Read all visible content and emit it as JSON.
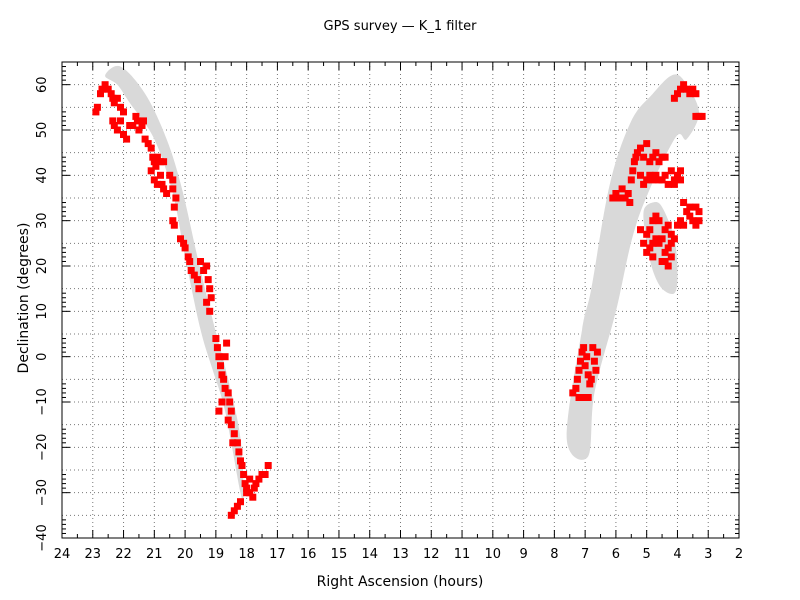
{
  "chart_data": {
    "type": "scatter",
    "title": "GPS survey — K_1 filter",
    "xlabel": "Right Ascension (hours)",
    "ylabel": "Declination (degrees)",
    "xlim": [
      24,
      2
    ],
    "ylim": [
      -40,
      65
    ],
    "x_ticks": [
      24,
      23,
      22,
      21,
      20,
      19,
      18,
      17,
      16,
      15,
      14,
      13,
      12,
      11,
      10,
      9,
      8,
      7,
      6,
      5,
      4,
      3,
      2
    ],
    "x_tick_labels": [
      "24",
      "23",
      "22",
      "21",
      "20",
      "19",
      "18",
      "17",
      "16",
      "15",
      "14",
      "13",
      "12",
      "11",
      "10",
      "9",
      "8",
      "7",
      "6",
      "5",
      "4",
      "3",
      "2"
    ],
    "y_ticks": [
      -40,
      -30,
      -20,
      -10,
      0,
      10,
      20,
      30,
      40,
      50,
      60
    ],
    "y_tick_labels": [
      "−40",
      "−30",
      "−20",
      "−10",
      "0",
      "10",
      "20",
      "30",
      "40",
      "50",
      "60"
    ],
    "grid": true,
    "colors": {
      "points": "#ff0000",
      "footprint": "#d9d9d9"
    },
    "footprint_regions": [
      {
        "name": "galactic-plane-west",
        "ra": [
          22.6,
          22.1,
          21.3,
          20.6,
          20.1,
          19.6,
          19.1,
          18.6,
          18.2,
          18.1,
          18.2,
          18.7,
          19.1,
          19.5,
          20.0,
          20.4,
          21.0,
          21.8,
          22.2
        ],
        "dec": [
          62,
          64,
          58,
          48,
          37,
          22,
          8,
          -5,
          -18,
          -31,
          -30,
          -12,
          -3,
          6,
          22,
          36,
          48,
          56,
          60
        ]
      },
      {
        "name": "galactic-plane-east",
        "ra": [
          7.6,
          7.1,
          6.8,
          6.2,
          5.5,
          4.8,
          4.2,
          3.8,
          3.3,
          3.7,
          4.1,
          5.3,
          6.0,
          6.7,
          6.9
        ],
        "dec": [
          -18,
          6,
          15,
          38,
          52,
          58,
          62,
          61,
          54,
          48,
          48,
          30,
          10,
          -8,
          -22
        ]
      },
      {
        "name": "ellipse-east",
        "ra": [
          5.1,
          4.8,
          4.5,
          4.1,
          4.0,
          4.1,
          4.5,
          4.8,
          5.0
        ],
        "dec": [
          32,
          34,
          33,
          26,
          18,
          14,
          15,
          19,
          25
        ]
      }
    ],
    "series": [
      {
        "note": "",
        "points": [
          [
            22.9,
            54
          ],
          [
            22.85,
            55
          ],
          [
            22.75,
            58
          ],
          [
            22.7,
            59
          ],
          [
            22.6,
            60
          ],
          [
            22.5,
            59
          ],
          [
            22.4,
            58
          ],
          [
            22.35,
            57
          ],
          [
            22.3,
            56
          ],
          [
            22.2,
            57
          ],
          [
            22.1,
            55
          ],
          [
            22.0,
            54
          ],
          [
            22.35,
            52
          ],
          [
            22.3,
            51
          ],
          [
            22.2,
            50
          ],
          [
            22.1,
            52
          ],
          [
            22.0,
            49
          ],
          [
            21.9,
            48
          ],
          [
            21.8,
            51
          ],
          [
            21.7,
            51
          ],
          [
            21.6,
            53
          ],
          [
            21.55,
            52
          ],
          [
            21.5,
            50
          ],
          [
            21.4,
            51
          ],
          [
            21.35,
            52
          ],
          [
            21.3,
            48
          ],
          [
            21.2,
            47
          ],
          [
            21.1,
            46
          ],
          [
            21.05,
            44
          ],
          [
            21.0,
            43
          ],
          [
            20.95,
            42
          ],
          [
            20.9,
            44
          ],
          [
            20.8,
            43
          ],
          [
            20.7,
            43
          ],
          [
            21.1,
            41
          ],
          [
            21.0,
            39
          ],
          [
            20.9,
            38
          ],
          [
            20.8,
            40
          ],
          [
            20.75,
            38
          ],
          [
            20.7,
            37
          ],
          [
            20.6,
            36
          ],
          [
            20.5,
            40
          ],
          [
            20.4,
            39
          ],
          [
            20.4,
            37
          ],
          [
            20.35,
            33
          ],
          [
            20.3,
            35
          ],
          [
            20.4,
            30
          ],
          [
            20.35,
            29
          ],
          [
            20.15,
            26
          ],
          [
            20.05,
            25
          ],
          [
            20.0,
            24
          ],
          [
            19.9,
            22
          ],
          [
            19.85,
            21
          ],
          [
            19.8,
            19
          ],
          [
            19.7,
            18
          ],
          [
            19.6,
            17
          ],
          [
            19.55,
            15
          ],
          [
            19.5,
            21
          ],
          [
            19.4,
            19
          ],
          [
            19.3,
            20
          ],
          [
            19.25,
            17
          ],
          [
            19.2,
            15
          ],
          [
            19.15,
            13
          ],
          [
            19.3,
            12
          ],
          [
            19.2,
            10
          ],
          [
            19.0,
            4
          ],
          [
            18.95,
            2
          ],
          [
            18.9,
            0
          ],
          [
            18.85,
            -2
          ],
          [
            18.8,
            -4
          ],
          [
            18.75,
            -5
          ],
          [
            18.7,
            -7
          ],
          [
            18.6,
            -8
          ],
          [
            18.55,
            -10
          ],
          [
            18.5,
            -12
          ],
          [
            18.6,
            -14
          ],
          [
            18.5,
            -15
          ],
          [
            18.4,
            -17
          ],
          [
            18.45,
            -19
          ],
          [
            18.7,
            0
          ],
          [
            18.65,
            3
          ],
          [
            18.8,
            -10
          ],
          [
            18.9,
            -12
          ],
          [
            18.3,
            -19
          ],
          [
            18.25,
            -21
          ],
          [
            18.2,
            -23
          ],
          [
            18.15,
            -24
          ],
          [
            18.1,
            -26
          ],
          [
            18.05,
            -28
          ],
          [
            18.0,
            -29
          ],
          [
            17.9,
            -30
          ],
          [
            17.8,
            -31
          ],
          [
            17.75,
            -29
          ],
          [
            17.7,
            -28
          ],
          [
            17.6,
            -27
          ],
          [
            17.5,
            -26
          ],
          [
            17.4,
            -26
          ],
          [
            17.3,
            -24
          ],
          [
            17.9,
            -27
          ],
          [
            18.2,
            -32
          ],
          [
            18.3,
            -33
          ],
          [
            18.4,
            -34
          ],
          [
            18.5,
            -35
          ],
          [
            18.0,
            -30
          ],
          [
            7.4,
            -8
          ],
          [
            7.3,
            -7
          ],
          [
            7.25,
            -5
          ],
          [
            7.2,
            -3
          ],
          [
            7.15,
            -1
          ],
          [
            7.1,
            1
          ],
          [
            7.05,
            2
          ],
          [
            7.0,
            -2
          ],
          [
            6.95,
            0
          ],
          [
            6.9,
            -4
          ],
          [
            6.85,
            -6
          ],
          [
            6.8,
            -5
          ],
          [
            6.75,
            2
          ],
          [
            6.7,
            -1
          ],
          [
            6.65,
            -3
          ],
          [
            6.6,
            1
          ],
          [
            7.2,
            -9
          ],
          [
            7.0,
            -9
          ],
          [
            6.9,
            -9
          ],
          [
            6.1,
            35
          ],
          [
            6.0,
            36
          ],
          [
            5.9,
            35
          ],
          [
            5.8,
            37
          ],
          [
            5.7,
            35
          ],
          [
            5.6,
            36
          ],
          [
            5.55,
            34
          ],
          [
            5.5,
            39
          ],
          [
            5.45,
            41
          ],
          [
            5.4,
            43
          ],
          [
            5.35,
            44
          ],
          [
            5.3,
            45
          ],
          [
            5.2,
            46
          ],
          [
            5.1,
            44
          ],
          [
            5.0,
            47
          ],
          [
            4.9,
            43
          ],
          [
            4.8,
            44
          ],
          [
            4.7,
            45
          ],
          [
            4.6,
            43
          ],
          [
            4.5,
            44
          ],
          [
            4.4,
            44
          ],
          [
            5.2,
            40
          ],
          [
            5.1,
            38
          ],
          [
            5.0,
            39
          ],
          [
            4.9,
            40
          ],
          [
            4.8,
            39
          ],
          [
            4.7,
            40
          ],
          [
            4.6,
            39
          ],
          [
            4.5,
            39
          ],
          [
            4.4,
            40
          ],
          [
            4.3,
            38
          ],
          [
            4.2,
            41
          ],
          [
            4.1,
            39
          ],
          [
            4.0,
            40
          ],
          [
            3.9,
            41
          ],
          [
            3.9,
            39
          ],
          [
            4.1,
            38
          ],
          [
            3.9,
            59
          ],
          [
            3.8,
            60
          ],
          [
            3.7,
            59
          ],
          [
            3.6,
            58
          ],
          [
            3.5,
            59
          ],
          [
            3.4,
            58
          ],
          [
            4.1,
            57
          ],
          [
            4.0,
            58
          ],
          [
            3.3,
            53
          ],
          [
            3.4,
            53
          ],
          [
            3.2,
            53
          ],
          [
            5.2,
            28
          ],
          [
            5.0,
            27
          ],
          [
            5.1,
            25
          ],
          [
            4.9,
            24
          ],
          [
            4.8,
            25
          ],
          [
            4.7,
            26
          ],
          [
            4.6,
            25
          ],
          [
            4.5,
            26
          ],
          [
            4.4,
            23
          ],
          [
            4.3,
            24
          ],
          [
            4.2,
            25
          ],
          [
            4.1,
            26
          ],
          [
            4.4,
            28
          ],
          [
            4.3,
            29
          ],
          [
            4.2,
            27
          ],
          [
            4.0,
            29
          ],
          [
            3.9,
            30
          ],
          [
            3.8,
            29
          ],
          [
            3.7,
            32
          ],
          [
            3.6,
            31
          ],
          [
            3.5,
            30
          ],
          [
            3.4,
            29
          ],
          [
            3.3,
            30
          ],
          [
            3.3,
            32
          ],
          [
            3.4,
            33
          ],
          [
            3.6,
            33
          ],
          [
            3.8,
            34
          ],
          [
            4.6,
            30
          ],
          [
            4.7,
            31
          ],
          [
            4.8,
            30
          ],
          [
            4.9,
            28
          ],
          [
            5.0,
            23
          ],
          [
            4.8,
            22
          ],
          [
            4.5,
            21
          ],
          [
            4.3,
            20
          ],
          [
            4.2,
            22
          ],
          [
            4.4,
            21
          ]
        ]
      }
    ]
  }
}
